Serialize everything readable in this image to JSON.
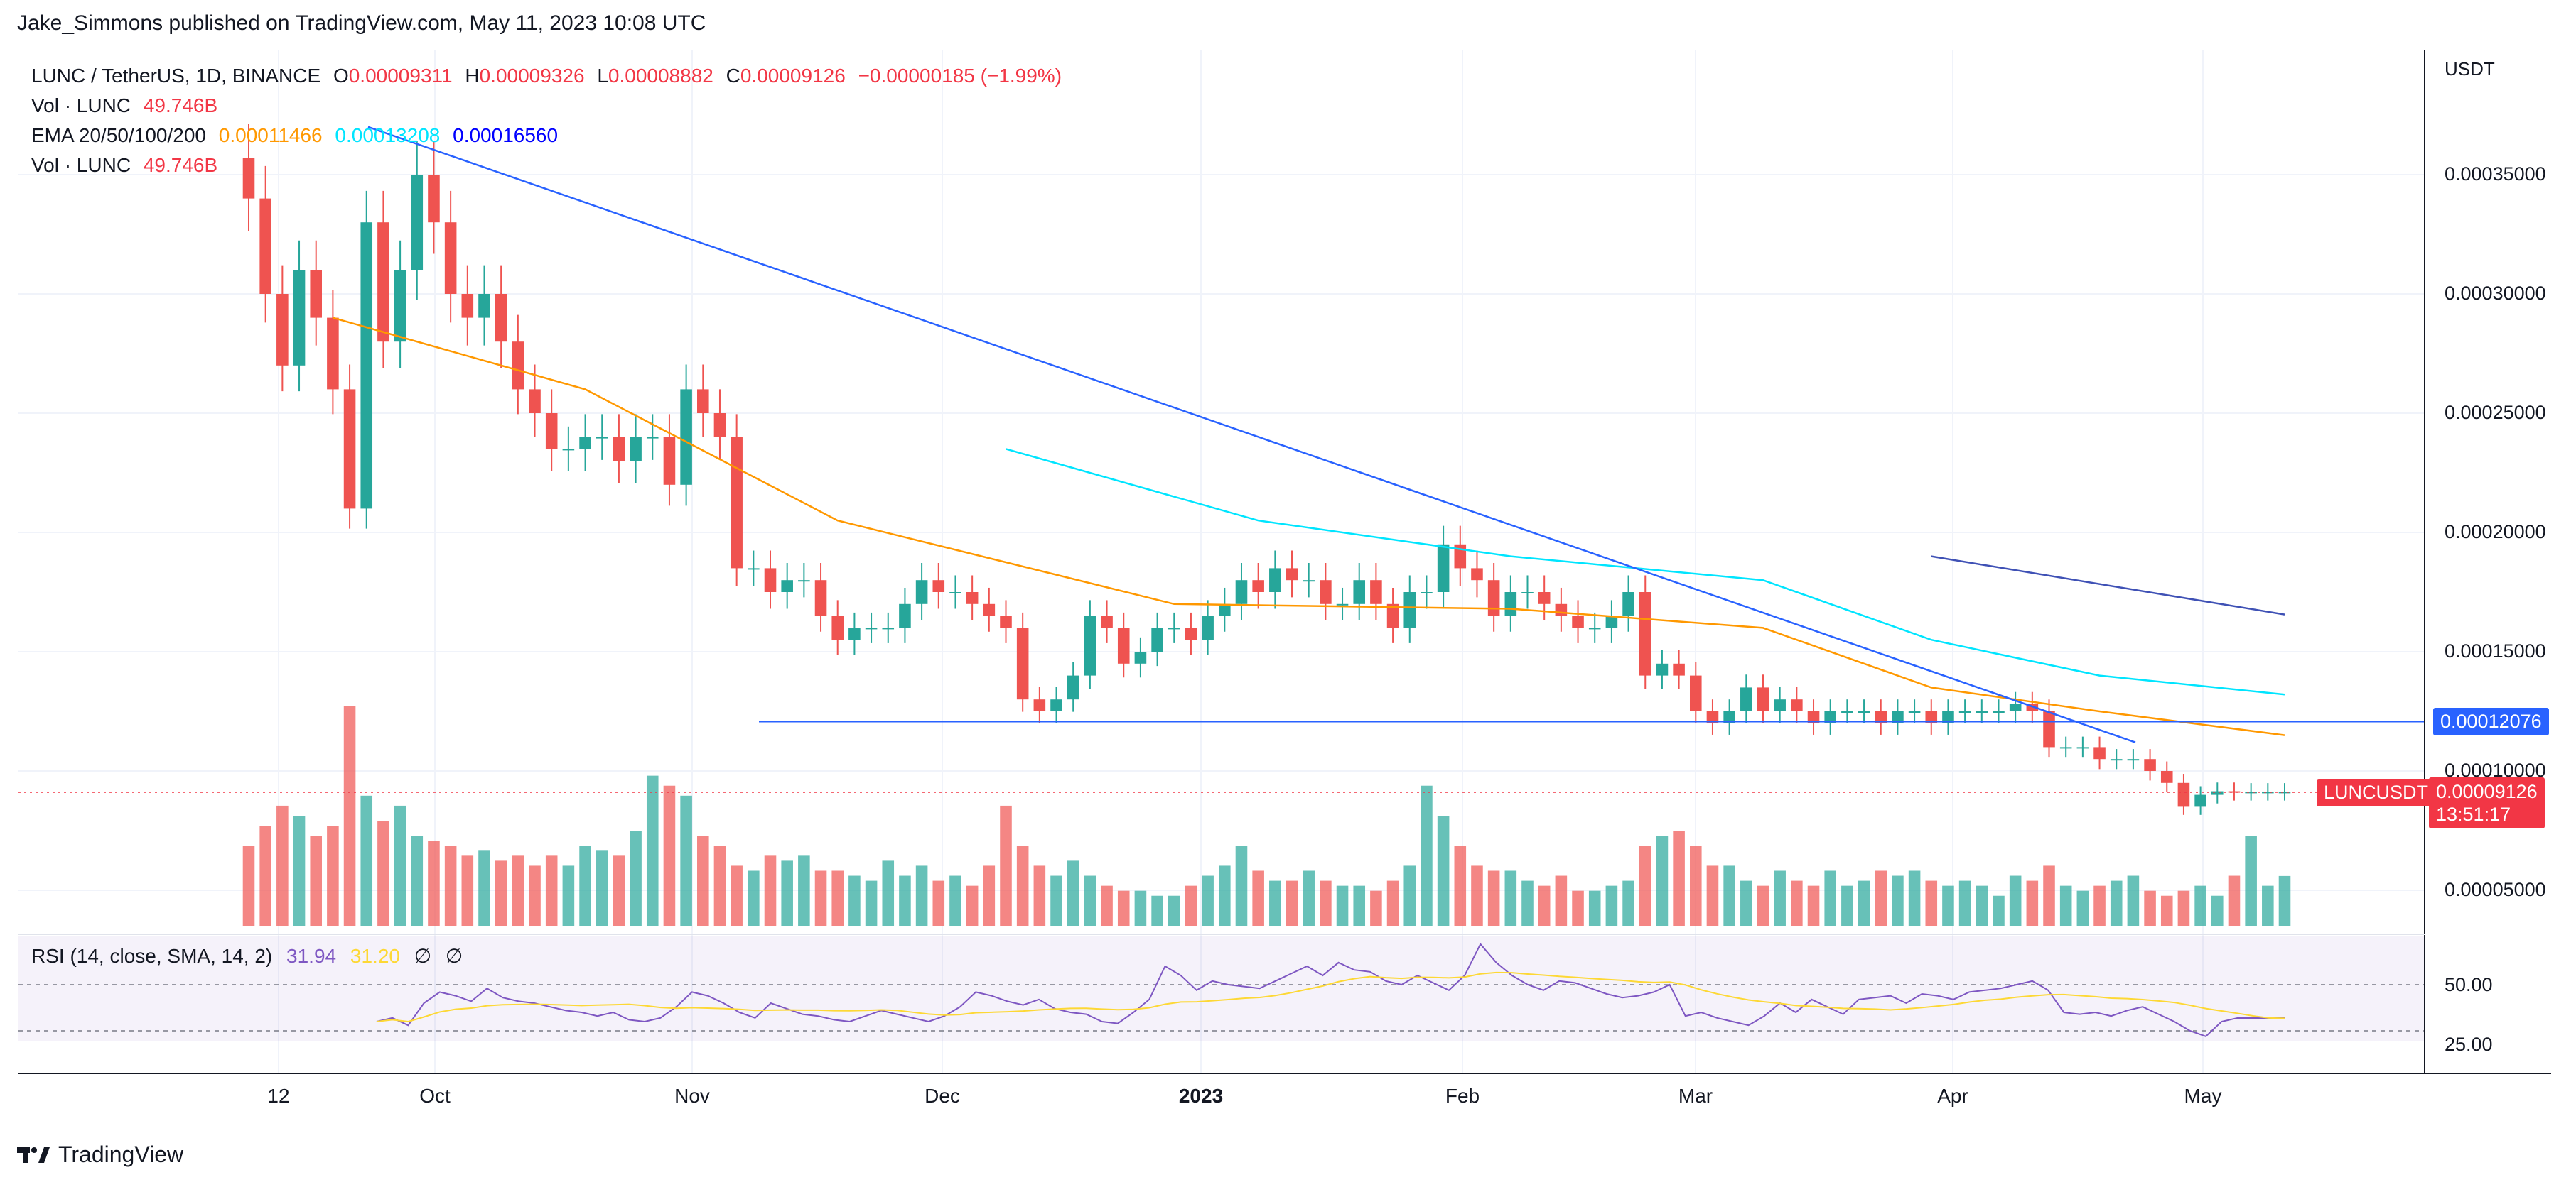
{
  "header": {
    "published": "Jake_Simmons published on TradingView.com, May 11, 2023 10:08 UTC"
  },
  "legend": {
    "symbol": "LUNC / TetherUS, 1D, BINANCE",
    "o_label": "O",
    "o_value": "0.00009311",
    "h_label": "H",
    "h_value": "0.00009326",
    "l_label": "L",
    "l_value": "0.00008882",
    "c_label": "C",
    "c_value": "0.00009126",
    "change": "−0.00000185 (−1.99%)",
    "vol_label": "Vol · LUNC",
    "vol_value": "49.746B",
    "ema_label": "EMA 20/50/100/200",
    "ema_20": "0.00011466",
    "ema_50": "0.00013208",
    "ema_100": "0.00016560",
    "vol2_label": "Vol · LUNC",
    "vol2_value": "49.746B"
  },
  "rsi": {
    "label": "RSI (14, close, SMA, 14, 2)",
    "value": "31.94",
    "sma_value": "31.20",
    "icon1": "∅",
    "icon2": "∅"
  },
  "price_axis": {
    "unit": "USDT",
    "labels": [
      "0.00035000",
      "0.00030000",
      "0.00025000",
      "0.00020000",
      "0.00015000",
      "0.00010000",
      "0.00005000"
    ],
    "line_tag": "0.00012076",
    "symbol_tag": "LUNCUSDT",
    "last_price": "0.00009126",
    "countdown": "13:51:17"
  },
  "rsi_axis": {
    "labels": [
      "50.00",
      "25.00"
    ]
  },
  "time_axis": {
    "labels": [
      "12",
      "Oct",
      "Nov",
      "Dec",
      "2023",
      "Feb",
      "Mar",
      "Apr",
      "May"
    ]
  },
  "footer": {
    "brand": "TradingView"
  },
  "colors": {
    "up": "#26a69a",
    "down": "#ef5350",
    "ema20": "#ff9800",
    "ema50": "#00e5ff",
    "ema100": "#3f51b5",
    "trendline": "#2962ff",
    "rsi": "#7e57c2",
    "rsi_sma": "#fdd835"
  },
  "chart_data": {
    "type": "candlestick",
    "symbol": "LUNC / TetherUS",
    "timeframe": "1D",
    "exchange": "BINANCE",
    "dates": [
      "2022-09-12",
      "2022-09-14",
      "2022-09-16",
      "2022-09-18",
      "2022-09-20",
      "2022-09-22",
      "2022-09-24",
      "2022-09-26",
      "2022-09-28",
      "2022-09-30",
      "2022-10-02",
      "2022-10-04",
      "2022-10-06",
      "2022-10-08",
      "2022-10-10",
      "2022-10-12",
      "2022-10-14",
      "2022-10-16",
      "2022-10-18",
      "2022-10-20",
      "2022-10-22",
      "2022-10-24",
      "2022-10-26",
      "2022-10-28",
      "2022-10-30",
      "2022-11-01",
      "2022-11-03",
      "2022-11-05",
      "2022-11-07",
      "2022-11-09",
      "2022-11-11",
      "2022-11-13",
      "2022-11-15",
      "2022-11-17",
      "2022-11-19",
      "2022-11-21",
      "2022-11-23",
      "2022-11-25",
      "2022-11-27",
      "2022-11-29",
      "2022-12-01",
      "2022-12-03",
      "2022-12-05",
      "2022-12-07",
      "2022-12-09",
      "2022-12-11",
      "2022-12-13",
      "2022-12-15",
      "2022-12-17",
      "2022-12-19",
      "2022-12-21",
      "2022-12-23",
      "2022-12-25",
      "2022-12-27",
      "2022-12-29",
      "2022-12-31",
      "2023-01-02",
      "2023-01-04",
      "2023-01-06",
      "2023-01-08",
      "2023-01-10",
      "2023-01-12",
      "2023-01-14",
      "2023-01-16",
      "2023-01-18",
      "2023-01-20",
      "2023-01-22",
      "2023-01-24",
      "2023-01-26",
      "2023-01-28",
      "2023-01-30",
      "2023-02-01",
      "2023-02-03",
      "2023-02-05",
      "2023-02-07",
      "2023-02-09",
      "2023-02-11",
      "2023-02-13",
      "2023-02-15",
      "2023-02-17",
      "2023-02-19",
      "2023-02-21",
      "2023-02-23",
      "2023-02-25",
      "2023-02-27",
      "2023-03-01",
      "2023-03-03",
      "2023-03-05",
      "2023-03-07",
      "2023-03-09",
      "2023-03-11",
      "2023-03-13",
      "2023-03-15",
      "2023-03-17",
      "2023-03-19",
      "2023-03-21",
      "2023-03-23",
      "2023-03-25",
      "2023-03-27",
      "2023-03-29",
      "2023-03-31",
      "2023-04-02",
      "2023-04-04",
      "2023-04-06",
      "2023-04-08",
      "2023-04-10",
      "2023-04-12",
      "2023-04-14",
      "2023-04-16",
      "2023-04-18",
      "2023-04-20",
      "2023-04-22",
      "2023-04-24",
      "2023-04-26",
      "2023-04-28",
      "2023-04-30",
      "2023-05-02",
      "2023-05-04",
      "2023-05-06",
      "2023-05-08",
      "2023-05-10",
      "2023-05-11"
    ],
    "close": [
      0.00034,
      0.0003,
      0.00027,
      0.00031,
      0.00029,
      0.00026,
      0.00021,
      0.00033,
      0.00028,
      0.00031,
      0.00035,
      0.00033,
      0.0003,
      0.00029,
      0.0003,
      0.00028,
      0.00026,
      0.00025,
      0.000235,
      0.000235,
      0.00024,
      0.00024,
      0.00023,
      0.00024,
      0.00024,
      0.00022,
      0.00026,
      0.00025,
      0.00024,
      0.000185,
      0.000185,
      0.000175,
      0.00018,
      0.00018,
      0.000165,
      0.000155,
      0.00016,
      0.00016,
      0.00016,
      0.00017,
      0.00018,
      0.000175,
      0.000175,
      0.00017,
      0.000165,
      0.00016,
      0.00013,
      0.000125,
      0.00013,
      0.00014,
      0.000165,
      0.00016,
      0.000145,
      0.00015,
      0.00016,
      0.00016,
      0.000155,
      0.000165,
      0.00017,
      0.00018,
      0.000175,
      0.000185,
      0.00018,
      0.00018,
      0.00017,
      0.00017,
      0.00018,
      0.00017,
      0.00016,
      0.000175,
      0.000175,
      0.000195,
      0.000185,
      0.00018,
      0.000165,
      0.000175,
      0.000175,
      0.00017,
      0.000165,
      0.00016,
      0.00016,
      0.000165,
      0.000175,
      0.00014,
      0.000145,
      0.00014,
      0.000125,
      0.00012,
      0.000125,
      0.000135,
      0.000125,
      0.00013,
      0.000125,
      0.00012,
      0.000125,
      0.000125,
      0.000125,
      0.00012,
      0.000125,
      0.000125,
      0.00012,
      0.000125,
      0.000125,
      0.000125,
      0.000125,
      0.000128,
      0.000125,
      0.00011,
      0.00011,
      0.00011,
      0.000105,
      0.000105,
      0.000105,
      0.0001,
      9.5e-05,
      8.5e-05,
      9e-05,
      9.15e-05,
      9.126e-05,
      9.126e-05,
      9.126e-05,
      9.126e-05
    ],
    "volume_billions": [
      80,
      100,
      120,
      110,
      90,
      100,
      220,
      130,
      105,
      120,
      90,
      85,
      80,
      70,
      75,
      65,
      70,
      60,
      70,
      60,
      80,
      75,
      70,
      95,
      150,
      140,
      130,
      90,
      80,
      60,
      55,
      70,
      65,
      70,
      55,
      55,
      50,
      45,
      65,
      50,
      60,
      45,
      50,
      40,
      60,
      120,
      80,
      60,
      50,
      65,
      50,
      40,
      35,
      35,
      30,
      30,
      40,
      50,
      60,
      80,
      55,
      45,
      45,
      55,
      45,
      40,
      40,
      35,
      45,
      60,
      140,
      110,
      80,
      60,
      55,
      55,
      45,
      40,
      50,
      35,
      35,
      40,
      45,
      80,
      90,
      95,
      80,
      60,
      60,
      45,
      40,
      55,
      45,
      40,
      55,
      40,
      45,
      55,
      50,
      55,
      45,
      40,
      45,
      40,
      30,
      50,
      45,
      60,
      40,
      35,
      40,
      45,
      50,
      35,
      30,
      35,
      40,
      30,
      50,
      90,
      40,
      49.746
    ],
    "rsi": [
      30,
      32,
      28,
      40,
      46,
      44,
      41,
      48,
      43,
      41,
      40,
      38,
      36,
      35,
      33,
      35,
      31,
      30,
      32,
      38,
      46,
      44,
      40,
      35,
      32,
      40,
      37,
      34,
      33,
      31,
      30,
      33,
      36,
      34,
      32,
      30,
      33,
      38,
      46,
      44,
      41,
      39,
      42,
      37,
      35,
      34,
      30,
      29,
      35,
      42,
      60,
      55,
      47,
      52,
      50,
      49,
      48,
      52,
      56,
      60,
      55,
      62,
      58,
      57,
      52,
      50,
      55,
      51,
      47,
      55,
      72,
      62,
      55,
      50,
      47,
      52,
      51,
      48,
      45,
      43,
      44,
      46,
      50,
      33,
      35,
      32,
      30,
      28,
      33,
      40,
      35,
      42,
      38,
      34,
      42,
      43,
      44,
      40,
      45,
      44,
      42,
      46,
      47,
      48,
      50,
      52,
      47,
      35,
      34,
      35,
      33,
      36,
      38,
      34,
      30,
      25,
      22,
      30,
      31.94,
      31.94,
      31.94,
      31.94
    ],
    "ema": [
      {
        "name": "EMA 20",
        "value": 0.00011466,
        "points": [
          [
            5,
            0.00029
          ],
          [
            20,
            0.00026
          ],
          [
            35,
            0.000205
          ],
          [
            55,
            0.00017
          ],
          [
            75,
            0.000168
          ],
          [
            90,
            0.00016
          ],
          [
            100,
            0.000135
          ],
          [
            110,
            0.000125
          ],
          [
            121,
            0.000115
          ]
        ]
      },
      {
        "name": "EMA 50",
        "value": 0.00013208,
        "points": [
          [
            45,
            0.000235
          ],
          [
            60,
            0.000205
          ],
          [
            75,
            0.00019
          ],
          [
            90,
            0.00018
          ],
          [
            100,
            0.000155
          ],
          [
            110,
            0.00014
          ],
          [
            121,
            0.00013208
          ]
        ]
      },
      {
        "name": "EMA 100",
        "value": 0.0001656,
        "points": [
          [
            100,
            0.00019
          ],
          [
            121,
            0.0001656
          ]
        ]
      }
    ],
    "trendlines": [
      {
        "name": "descending",
        "from": [
          "2022-09-22",
          0.00037
        ],
        "to": [
          "2023-04-20",
          0.000112
        ]
      },
      {
        "name": "support",
        "from": [
          "2022-11-09",
          0.00012076
        ],
        "to": [
          "2023-05-31",
          0.00012076
        ]
      }
    ],
    "ylim": [
      3e-05,
      0.0004
    ],
    "y_ticks": [
      5e-05,
      0.0001,
      0.00015,
      0.0002,
      0.00025,
      0.0003,
      0.00035
    ],
    "rsi_ticks": [
      25,
      50
    ]
  }
}
